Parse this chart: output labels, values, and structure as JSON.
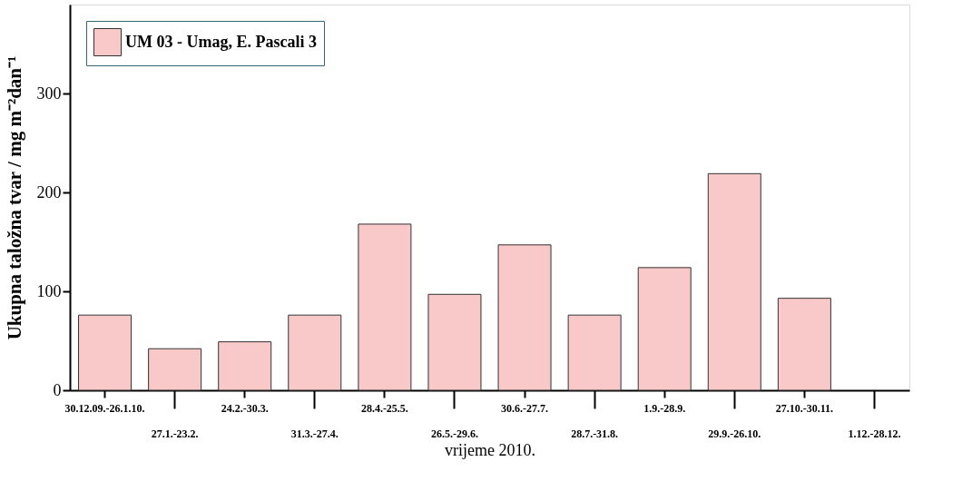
{
  "chart_data": {
    "type": "bar",
    "xlabel": "vrijeme 2010.",
    "ylabel": "Ukupna taložna tvar / mg m⁻²dan⁻¹",
    "categories": [
      "30.12.09.-26.1.10.",
      "27.1.-23.2.",
      "24.2.-30.3.",
      "31.3.-27.4.",
      "28.4.-25.5.",
      "26.5.-29.6.",
      "30.6.-27.7.",
      "28.7.-31.8.",
      "1.9.-28.9.",
      "29.9.-26.10.",
      "27.10.-30.11.",
      "1.12.-28.12."
    ],
    "series": [
      {
        "name": "UM 03 - Umag, E. Pascali 3",
        "color": "#f9c8c8",
        "values": [
          76,
          42,
          49,
          76,
          168,
          97,
          147,
          76,
          124,
          219,
          93,
          null
        ]
      }
    ],
    "ylim": [
      0,
      390
    ],
    "yticks": [
      0,
      100,
      200,
      300
    ],
    "grid": false,
    "legend": "top left"
  }
}
